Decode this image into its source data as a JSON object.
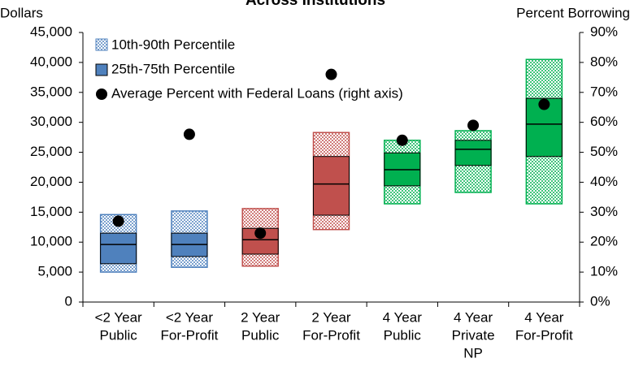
{
  "chart_data": {
    "type": "box",
    "title": "Across Institutions",
    "y_label": "Dollars",
    "y2_label": "Percent Borrowing",
    "categories": [
      [
        "<2 Year",
        "Public"
      ],
      [
        "<2 Year",
        "For-Profit"
      ],
      [
        "2 Year",
        "Public"
      ],
      [
        "2 Year",
        "For-Profit"
      ],
      [
        "4 Year",
        "Public"
      ],
      [
        "4 Year",
        "Private",
        "NP"
      ],
      [
        "4 Year",
        "For-Profit"
      ]
    ],
    "colors": [
      "#4f81bd",
      "#4f81bd",
      "#c0504d",
      "#c0504d",
      "#00b050",
      "#00b050",
      "#00b050"
    ],
    "series": [
      {
        "name": "10th-90th Percentile",
        "low": [
          5000,
          5800,
          6000,
          12100,
          16400,
          18300,
          16400
        ],
        "high": [
          14600,
          15200,
          15600,
          28300,
          27000,
          28600,
          40500
        ]
      },
      {
        "name": "25th-75th Percentile",
        "low": [
          6400,
          7600,
          8000,
          14500,
          19400,
          22800,
          24300
        ],
        "high": [
          11500,
          11500,
          12300,
          24300,
          24900,
          27000,
          34000
        ]
      },
      {
        "name": "Average Percent with Federal Loans (right axis)",
        "axis": "y2",
        "color": "#000000",
        "values": [
          27,
          56,
          23,
          76,
          54,
          59,
          66
        ]
      }
    ],
    "median": [
      9600,
      9600,
      10400,
      19700,
      22100,
      25500,
      29700
    ],
    "ylim": [
      0,
      45000
    ],
    "yticks": [
      0,
      {
        "value": 5000,
        "label": "5,000"
      },
      {
        "value": 10000,
        "label": "10,000"
      },
      {
        "value": 15000,
        "label": "15,000"
      },
      {
        "value": 20000,
        "label": "20,000"
      },
      {
        "value": 25000,
        "label": "25,000"
      },
      {
        "value": 30000,
        "label": "30,000"
      },
      {
        "value": 35000,
        "label": "35,000"
      },
      {
        "value": 40000,
        "label": "40,000"
      },
      {
        "value": 45000,
        "label": "45,000"
      }
    ],
    "y2lim": [
      0,
      90
    ],
    "y2ticks": [
      {
        "value": 0,
        "label": "0%"
      },
      {
        "value": 10,
        "label": "10%"
      },
      {
        "value": 20,
        "label": "20%"
      },
      {
        "value": 30,
        "label": "30%"
      },
      {
        "value": 40,
        "label": "40%"
      },
      {
        "value": 50,
        "label": "50%"
      },
      {
        "value": 60,
        "label": "60%"
      },
      {
        "value": 70,
        "label": "70%"
      },
      {
        "value": 80,
        "label": "80%"
      },
      {
        "value": 90,
        "label": "90%"
      }
    ],
    "grid": false
  }
}
